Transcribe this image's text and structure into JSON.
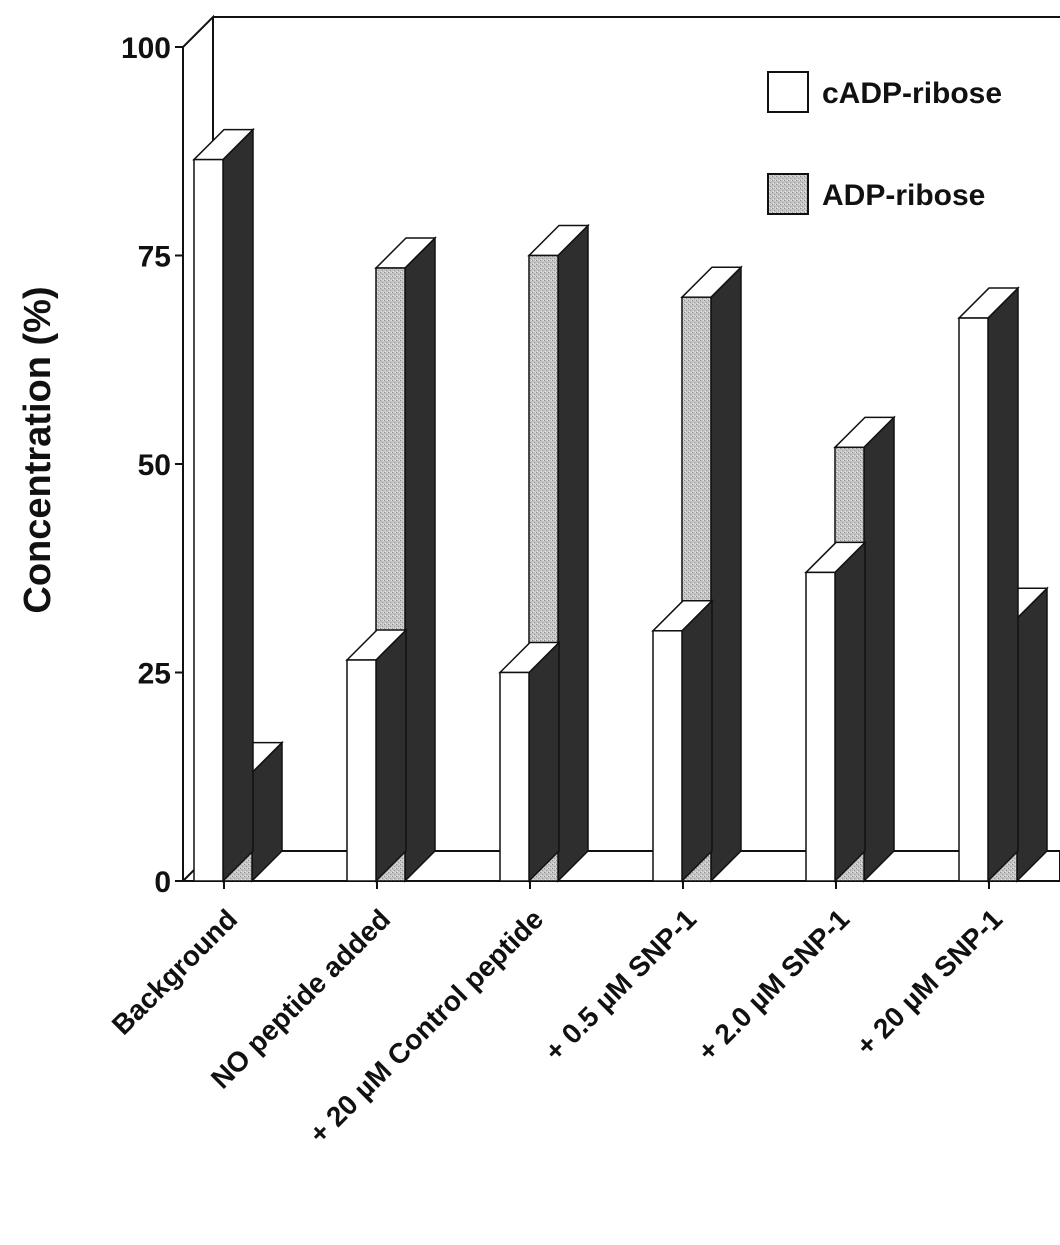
{
  "chart_data": {
    "type": "bar",
    "categories": [
      "Background",
      "NO peptide added",
      "+ 20 µM Control peptide",
      "+ 0.5 µM SNP-1",
      "+ 2.0 µM SNP-1",
      "+ 20 µM SNP-1"
    ],
    "series": [
      {
        "name": "cADP-ribose",
        "values": [
          86.5,
          26.5,
          25,
          30,
          37,
          67.5
        ],
        "color": "#ffffff"
      },
      {
        "name": "ADP-ribose",
        "values": [
          13,
          73.5,
          75,
          70,
          52,
          31.5
        ],
        "color": "#bdbdbd"
      }
    ],
    "ylabel": "Concentration (%)",
    "ylim": [
      0,
      100
    ],
    "yticks": [
      "0",
      "25",
      "50",
      "75",
      "100"
    ],
    "legend_position": "top-right",
    "style": "3d-bars",
    "side_color": "#2e2e2e",
    "top_color": "#ffffff"
  }
}
